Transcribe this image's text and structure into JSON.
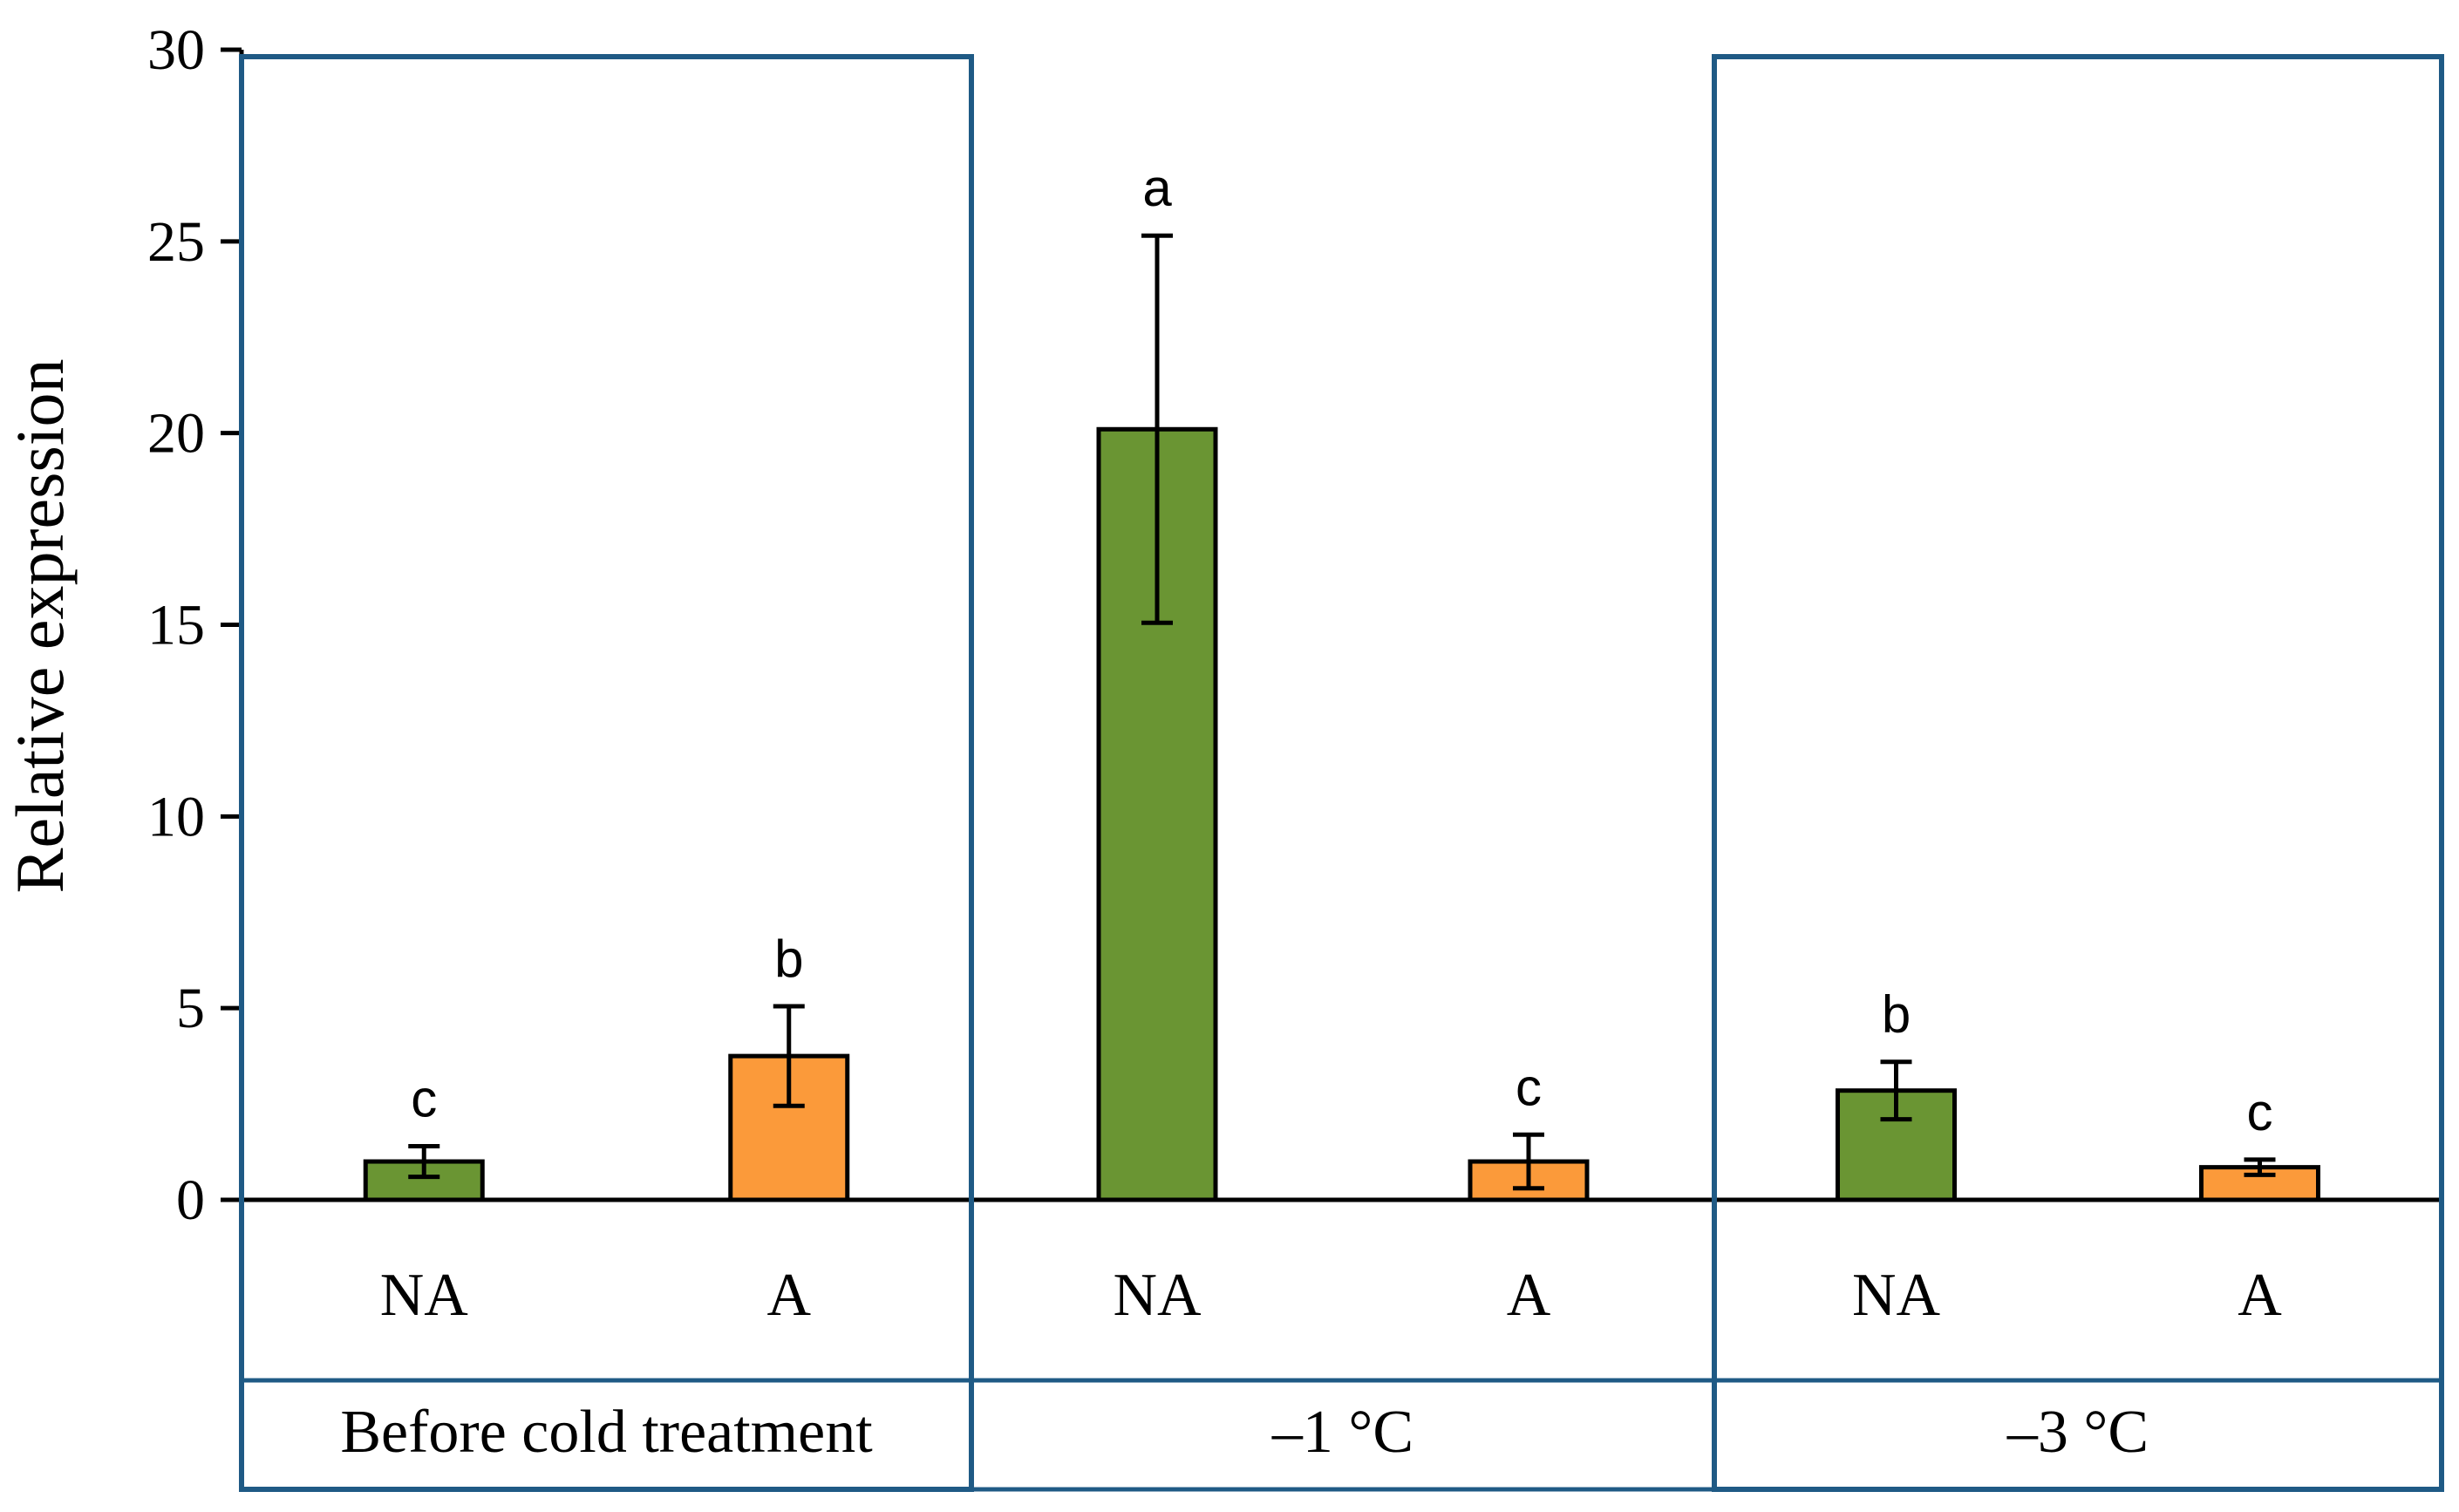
{
  "chart_data": {
    "type": "bar",
    "ylabel": "Relative expression",
    "ylim": [
      0,
      30
    ],
    "yticks": [
      0,
      5,
      10,
      15,
      20,
      25,
      30
    ],
    "ytick_labels": [
      "0",
      "5",
      "10",
      "15",
      "20",
      "25",
      "30"
    ],
    "groups": [
      {
        "label": "Before cold treatment",
        "bars": [
          {
            "category": "NA",
            "value": 1.0,
            "error": 0.4,
            "letter": "c",
            "color": "#6a9533"
          },
          {
            "category": "A",
            "value": 3.75,
            "error": 1.3,
            "letter": "b",
            "color": "#fb9a3a"
          }
        ]
      },
      {
        "label": "–1 °C",
        "bars": [
          {
            "category": "NA",
            "value": 20.1,
            "error": 5.05,
            "letter": "a",
            "color": "#6a9533"
          },
          {
            "category": "A",
            "value": 1.0,
            "error": 0.7,
            "letter": "c",
            "color": "#fb9a3a"
          }
        ]
      },
      {
        "label": "–3 °C",
        "bars": [
          {
            "category": "NA",
            "value": 2.85,
            "error": 0.75,
            "letter": "b",
            "color": "#6a9533"
          },
          {
            "category": "A",
            "value": 0.85,
            "error": 0.2,
            "letter": "c",
            "color": "#fb9a3a"
          }
        ]
      }
    ],
    "frame_color": "#1f5a85",
    "axis_color": "#000000"
  }
}
